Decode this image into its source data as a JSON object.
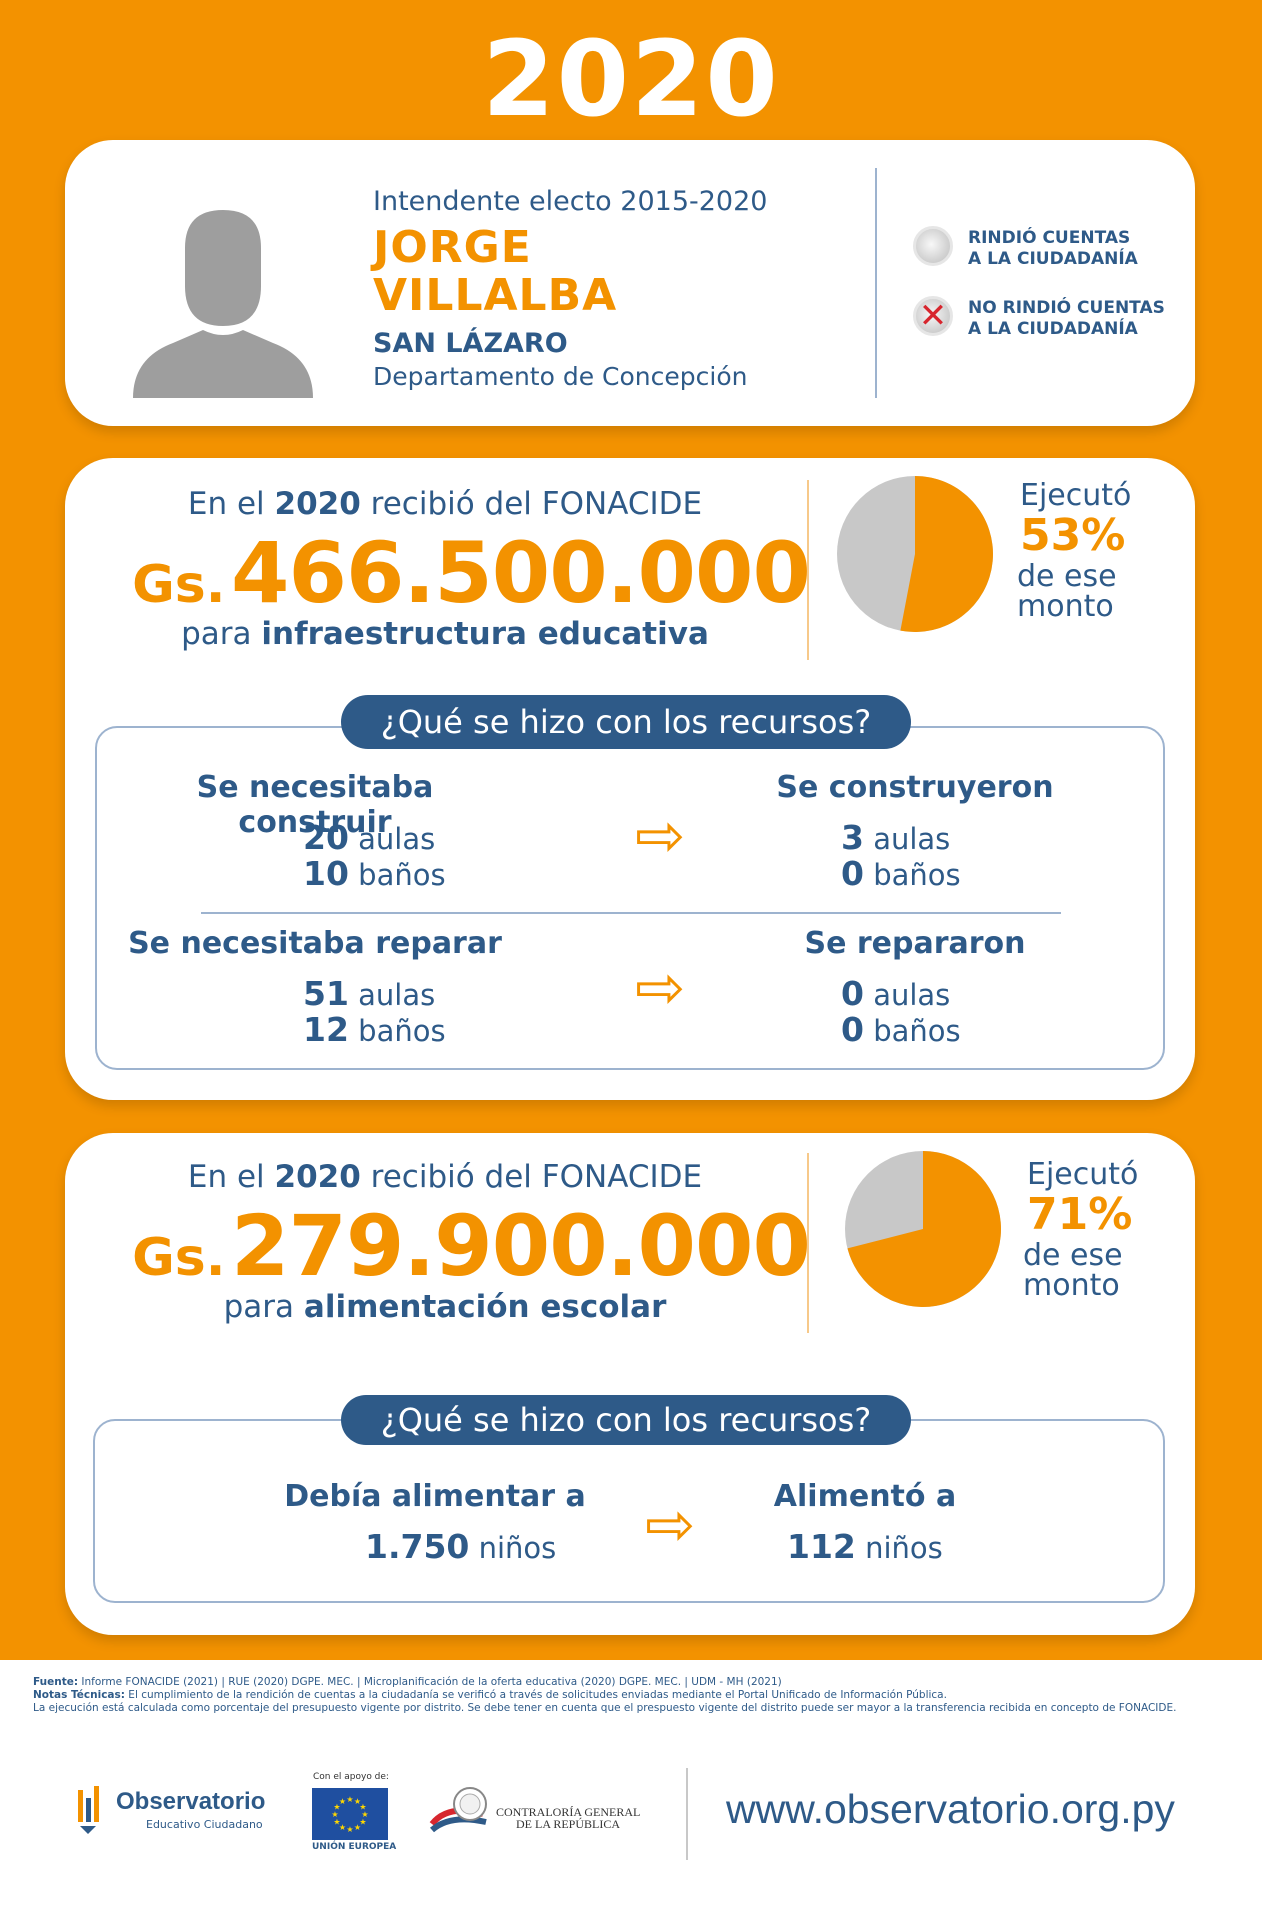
{
  "year": "2020",
  "profile": {
    "role": "Intendente electo 2015-2020",
    "name_line1": "JORGE",
    "name_line2": "VILLALBA",
    "municipality": "SAN LÁZARO",
    "department": "Departamento de Concepción",
    "legend": {
      "rendered": "RINDIÓ CUENTAS\nA LA CIUDADANÍA",
      "rendered_l1": "RINDIÓ CUENTAS",
      "rendered_l2": "A LA CIUDADANÍA",
      "not_rendered_l1": "NO RINDIÓ CUENTAS",
      "not_rendered_l2": "A LA CIUDADANÍA",
      "not_rendered_mark": "✕"
    }
  },
  "infra": {
    "intro_pre": "En el ",
    "intro_year": "2020",
    "intro_post": " recibió del FONACIDE",
    "currency": "Gs.",
    "amount": "466.500.000",
    "para_pre": "para ",
    "para_bold": "infraestructura educativa",
    "executed_label": "Ejecutó",
    "executed_pct": "53%",
    "executed_suffix_l1": "de ese",
    "executed_suffix_l2": "monto",
    "executed_value": 53,
    "question": "¿Qué se hizo con los recursos?",
    "build_needed_title": "Se necesitaba construir",
    "build_needed_classrooms": "20",
    "build_needed_bathrooms": "10",
    "built_title": "Se construyeron",
    "built_classrooms": "3",
    "built_bathrooms": "0",
    "repair_needed_title": "Se necesitaba reparar",
    "repair_needed_classrooms": "51",
    "repair_needed_bathrooms": "12",
    "repaired_title": "Se repararon",
    "repaired_classrooms": "0",
    "repaired_bathrooms": "0",
    "unit_classrooms": "aulas",
    "unit_bathrooms": "baños"
  },
  "food": {
    "intro_pre": "En el ",
    "intro_year": "2020",
    "intro_post": " recibió del FONACIDE",
    "currency": "Gs.",
    "amount": "279.900.000",
    "para_pre": "para ",
    "para_bold": "alimentación escolar",
    "executed_label": "Ejecutó",
    "executed_pct": "71%",
    "executed_suffix_l1": "de ese",
    "executed_suffix_l2": "monto",
    "executed_value": 71,
    "question": "¿Qué se hizo con los recursos?",
    "should_feed_title": "Debía alimentar a",
    "should_feed_count": "1.750",
    "fed_title": "Alimentó a",
    "fed_count": "112",
    "unit_children": "niños"
  },
  "footer": {
    "source_label": "Fuente:",
    "source_text": " Informe FONACIDE (2021) | RUE (2020) DGPE. MEC. | Microplanificación de la oferta educativa (2020) DGPE. MEC. | UDM - MH (2021)",
    "notes_label": "Notas Técnicas:",
    "notes_text": "  El cumplimiento de la rendición de cuentas a la ciudadanía se verificó a través de solicitudes enviadas mediante el Portal Unificado de Información Pública.",
    "notes_text2": "La ejecución está calculada como porcentaje del presupuesto vigente por distrito. Se debe tener en cuenta que el prespuesto vigente del distrito puede ser mayor a la transferencia recibida en concepto de FONACIDE.",
    "obs_title": "Observatorio",
    "obs_sub": "Educativo Ciudadano",
    "support": "Con el apoyo de:",
    "eu": "UNIÓN EUROPEA",
    "cgr_l1": "CONTRALORÍA GENERAL",
    "cgr_l2": "DE LA REPÚBLICA",
    "url": "www.observatorio.org.py"
  },
  "colors": {
    "orange": "#F39200",
    "blue": "#2E5A88",
    "grey": "#C8C8C8",
    "red": "#D7262E"
  }
}
